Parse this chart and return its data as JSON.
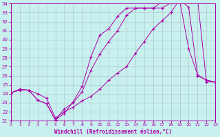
{
  "xlabel": "Windchill (Refroidissement éolien,°C)",
  "xlim": [
    0,
    23
  ],
  "ylim": [
    21,
    34
  ],
  "yticks": [
    21,
    22,
    23,
    24,
    25,
    26,
    27,
    28,
    29,
    30,
    31,
    32,
    33,
    34
  ],
  "xticks": [
    0,
    1,
    2,
    3,
    4,
    5,
    6,
    7,
    8,
    9,
    10,
    11,
    12,
    13,
    14,
    15,
    16,
    17,
    18,
    19,
    20,
    21,
    22,
    23
  ],
  "bg_color": "#c8f0ee",
  "grid_color": "#b0c8d0",
  "line_color": "#aa00aa",
  "line1_x": [
    0,
    1,
    2,
    3,
    4,
    5,
    6,
    7,
    8,
    9,
    10,
    11,
    12,
    13,
    14,
    15,
    16,
    17,
    18,
    19,
    20,
    21,
    22,
    23
  ],
  "line1_y": [
    24.1,
    24.5,
    24.4,
    23.3,
    22.9,
    21.1,
    22.3,
    23.0,
    24.2,
    26.6,
    28.4,
    29.8,
    31.0,
    32.7,
    33.5,
    33.5,
    33.5,
    33.5,
    34.1,
    34.3,
    29.0,
    26.1,
    25.5,
    25.3
  ],
  "line2_x": [
    0,
    1,
    2,
    3,
    4,
    5,
    6,
    7,
    8,
    9,
    10,
    11,
    12,
    13,
    14,
    15,
    16,
    17,
    18,
    19,
    20,
    21,
    22,
    23
  ],
  "line2_y": [
    24.1,
    24.5,
    24.4,
    23.3,
    22.9,
    21.1,
    21.8,
    23.1,
    24.8,
    28.1,
    30.5,
    31.2,
    32.6,
    33.5,
    33.5,
    33.5,
    33.5,
    34.2,
    34.4,
    34.4,
    33.6,
    26.0,
    25.5,
    25.3
  ],
  "line3_x": [
    0,
    1,
    2,
    3,
    4,
    5,
    6,
    7,
    8,
    9,
    10,
    11,
    12,
    13,
    14,
    15,
    16,
    17,
    18,
    19,
    20,
    21,
    22,
    23
  ],
  "line3_y": [
    24.1,
    24.4,
    24.4,
    24.0,
    23.5,
    21.3,
    22.0,
    22.5,
    23.2,
    23.7,
    24.5,
    25.5,
    26.3,
    27.0,
    28.5,
    29.8,
    31.2,
    32.1,
    33.0,
    34.5,
    34.5,
    34.5,
    25.3,
    25.3
  ]
}
